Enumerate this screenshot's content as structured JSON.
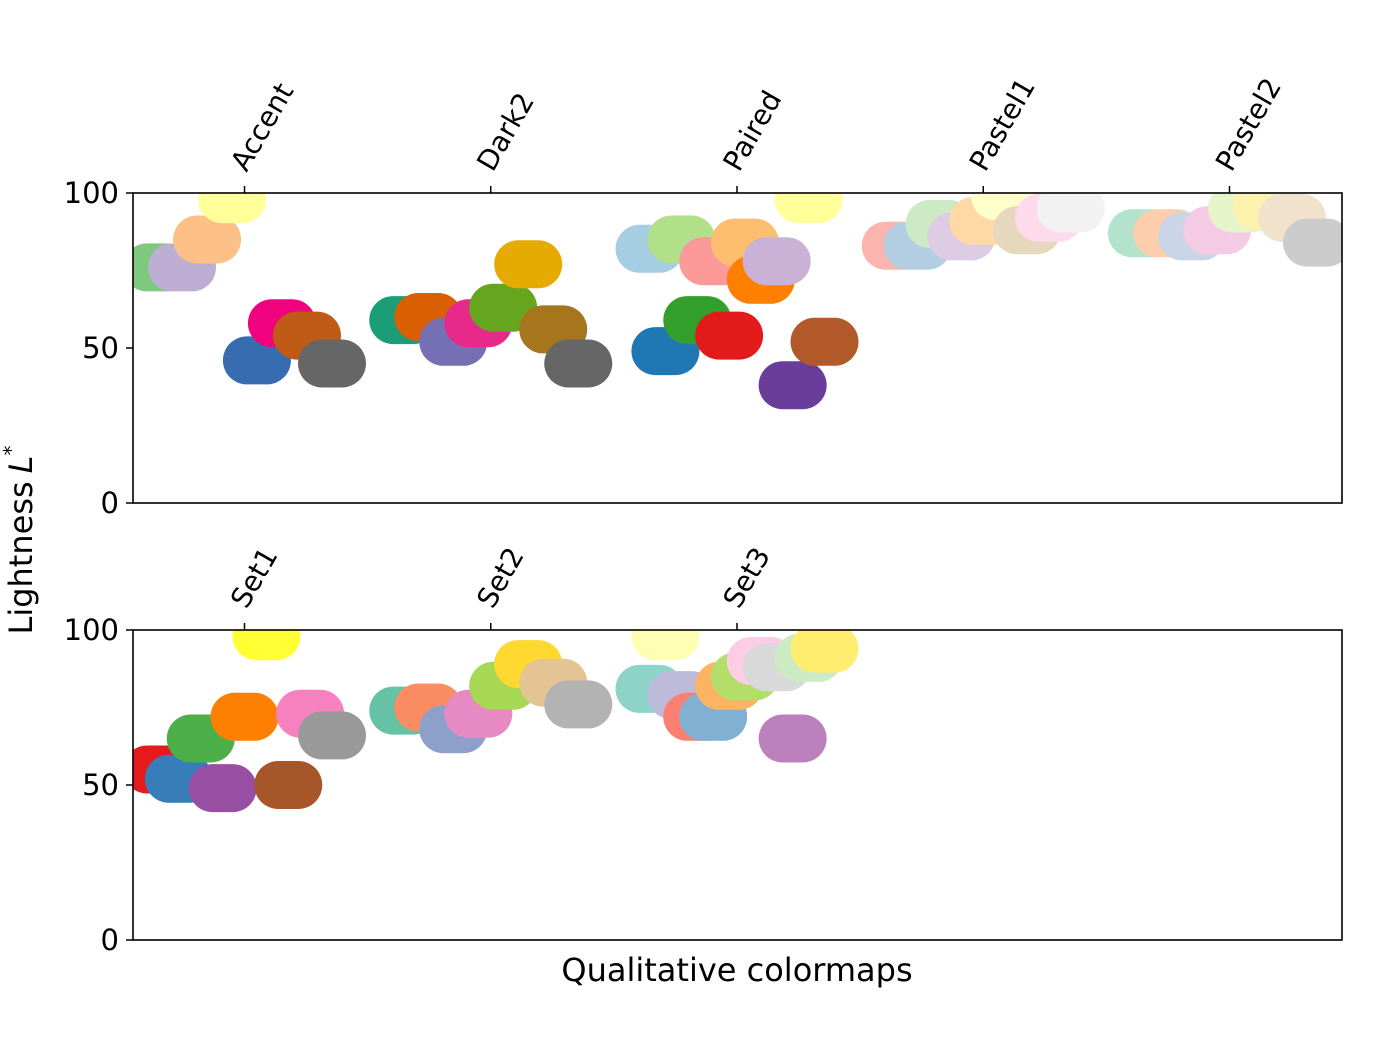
{
  "figure": {
    "ylabel": "Lightness",
    "ylabel_symbol": "L",
    "ylabel_sup": "*",
    "xlabel": "Qualitative colormaps"
  },
  "chart_data": [
    {
      "type": "scatter",
      "ylim": [
        0,
        100
      ],
      "yticks": [
        "0",
        "50",
        "100"
      ],
      "grid": false,
      "colormaps": [
        {
          "name": "Accent",
          "points": [
            {
              "x": 0.0,
              "y": 76,
              "color": "#7fc97f"
            },
            {
              "x": 0.143,
              "y": 76,
              "color": "#beaed4"
            },
            {
              "x": 0.286,
              "y": 85,
              "color": "#fdc086"
            },
            {
              "x": 0.429,
              "y": 98,
              "color": "#ffff99"
            },
            {
              "x": 0.571,
              "y": 46,
              "color": "#386cb0"
            },
            {
              "x": 0.714,
              "y": 58,
              "color": "#f0027f"
            },
            {
              "x": 0.857,
              "y": 54,
              "color": "#bf5b17"
            },
            {
              "x": 1.0,
              "y": 45,
              "color": "#666666"
            }
          ]
        },
        {
          "name": "Dark2",
          "points": [
            {
              "x": 0.0,
              "y": 59,
              "color": "#1b9e77"
            },
            {
              "x": 0.143,
              "y": 60,
              "color": "#d95f02"
            },
            {
              "x": 0.286,
              "y": 52,
              "color": "#7570b3"
            },
            {
              "x": 0.429,
              "y": 58,
              "color": "#e7298a"
            },
            {
              "x": 0.571,
              "y": 63,
              "color": "#66a61e"
            },
            {
              "x": 0.714,
              "y": 77,
              "color": "#e6ab02"
            },
            {
              "x": 0.857,
              "y": 56,
              "color": "#a6761d"
            },
            {
              "x": 1.0,
              "y": 45,
              "color": "#666666"
            }
          ]
        },
        {
          "name": "Paired",
          "points": [
            {
              "x": 0.0,
              "y": 82,
              "color": "#a6cee3"
            },
            {
              "x": 0.091,
              "y": 49,
              "color": "#1f78b4"
            },
            {
              "x": 0.182,
              "y": 85,
              "color": "#b2df8a"
            },
            {
              "x": 0.273,
              "y": 59,
              "color": "#33a02c"
            },
            {
              "x": 0.364,
              "y": 78,
              "color": "#fb9a99"
            },
            {
              "x": 0.455,
              "y": 54,
              "color": "#e31a1c"
            },
            {
              "x": 0.545,
              "y": 84,
              "color": "#fdbf6f"
            },
            {
              "x": 0.636,
              "y": 72,
              "color": "#ff7f00"
            },
            {
              "x": 0.727,
              "y": 78,
              "color": "#cab2d6"
            },
            {
              "x": 0.818,
              "y": 38,
              "color": "#6a3d9a"
            },
            {
              "x": 0.909,
              "y": 98,
              "color": "#ffff99"
            },
            {
              "x": 1.0,
              "y": 52,
              "color": "#b15928"
            }
          ]
        },
        {
          "name": "Pastel1",
          "points": [
            {
              "x": 0.0,
              "y": 83,
              "color": "#fbb4ae"
            },
            {
              "x": 0.125,
              "y": 83,
              "color": "#b3cde3"
            },
            {
              "x": 0.25,
              "y": 90,
              "color": "#ccebc5"
            },
            {
              "x": 0.375,
              "y": 86,
              "color": "#decbe4"
            },
            {
              "x": 0.5,
              "y": 91,
              "color": "#fed9a6"
            },
            {
              "x": 0.625,
              "y": 99,
              "color": "#ffffcc"
            },
            {
              "x": 0.75,
              "y": 88,
              "color": "#e5d8bd"
            },
            {
              "x": 0.875,
              "y": 92,
              "color": "#fddaec"
            },
            {
              "x": 1.0,
              "y": 95,
              "color": "#f2f2f2"
            }
          ]
        },
        {
          "name": "Pastel2",
          "points": [
            {
              "x": 0.0,
              "y": 87,
              "color": "#b3e2cd"
            },
            {
              "x": 0.143,
              "y": 87,
              "color": "#fdcdac"
            },
            {
              "x": 0.286,
              "y": 86,
              "color": "#cbd5e8"
            },
            {
              "x": 0.429,
              "y": 88,
              "color": "#f4cae4"
            },
            {
              "x": 0.571,
              "y": 95,
              "color": "#e6f5c9"
            },
            {
              "x": 0.714,
              "y": 96,
              "color": "#fff2ae"
            },
            {
              "x": 0.857,
              "y": 92,
              "color": "#f1e2cc"
            },
            {
              "x": 1.0,
              "y": 84,
              "color": "#cccccc"
            }
          ]
        }
      ]
    },
    {
      "type": "scatter",
      "ylim": [
        0,
        100
      ],
      "yticks": [
        "0",
        "50",
        "100"
      ],
      "grid": false,
      "colormaps": [
        {
          "name": "Set1",
          "points": [
            {
              "x": 0.0,
              "y": 55,
              "color": "#e41a1c"
            },
            {
              "x": 0.125,
              "y": 52,
              "color": "#377eb8"
            },
            {
              "x": 0.25,
              "y": 65,
              "color": "#4daf4a"
            },
            {
              "x": 0.375,
              "y": 49,
              "color": "#984ea3"
            },
            {
              "x": 0.5,
              "y": 72,
              "color": "#ff7f00"
            },
            {
              "x": 0.625,
              "y": 98,
              "color": "#ffff33"
            },
            {
              "x": 0.75,
              "y": 50,
              "color": "#a65628"
            },
            {
              "x": 0.875,
              "y": 73,
              "color": "#f781bf"
            },
            {
              "x": 1.0,
              "y": 66,
              "color": "#999999"
            }
          ]
        },
        {
          "name": "Set2",
          "points": [
            {
              "x": 0.0,
              "y": 74,
              "color": "#66c2a5"
            },
            {
              "x": 0.143,
              "y": 75,
              "color": "#fc8d62"
            },
            {
              "x": 0.286,
              "y": 68,
              "color": "#8da0cb"
            },
            {
              "x": 0.429,
              "y": 73,
              "color": "#e78ac3"
            },
            {
              "x": 0.571,
              "y": 82,
              "color": "#a6d854"
            },
            {
              "x": 0.714,
              "y": 89,
              "color": "#ffd92f"
            },
            {
              "x": 0.857,
              "y": 83,
              "color": "#e5c494"
            },
            {
              "x": 1.0,
              "y": 76,
              "color": "#b3b3b3"
            }
          ]
        },
        {
          "name": "Set3",
          "points": [
            {
              "x": 0.0,
              "y": 81,
              "color": "#8dd3c7"
            },
            {
              "x": 0.091,
              "y": 98,
              "color": "#ffffb3"
            },
            {
              "x": 0.182,
              "y": 79,
              "color": "#bebada"
            },
            {
              "x": 0.273,
              "y": 72,
              "color": "#fb8072"
            },
            {
              "x": 0.364,
              "y": 72,
              "color": "#80b1d3"
            },
            {
              "x": 0.455,
              "y": 82,
              "color": "#fdb462"
            },
            {
              "x": 0.545,
              "y": 85,
              "color": "#b3de69"
            },
            {
              "x": 0.636,
              "y": 90,
              "color": "#fccde5"
            },
            {
              "x": 0.727,
              "y": 88,
              "color": "#d9d9d9"
            },
            {
              "x": 0.818,
              "y": 65,
              "color": "#bc80bd"
            },
            {
              "x": 0.909,
              "y": 91,
              "color": "#ccebc5"
            },
            {
              "x": 1.0,
              "y": 94,
              "color": "#ffed6f"
            }
          ]
        }
      ]
    }
  ]
}
